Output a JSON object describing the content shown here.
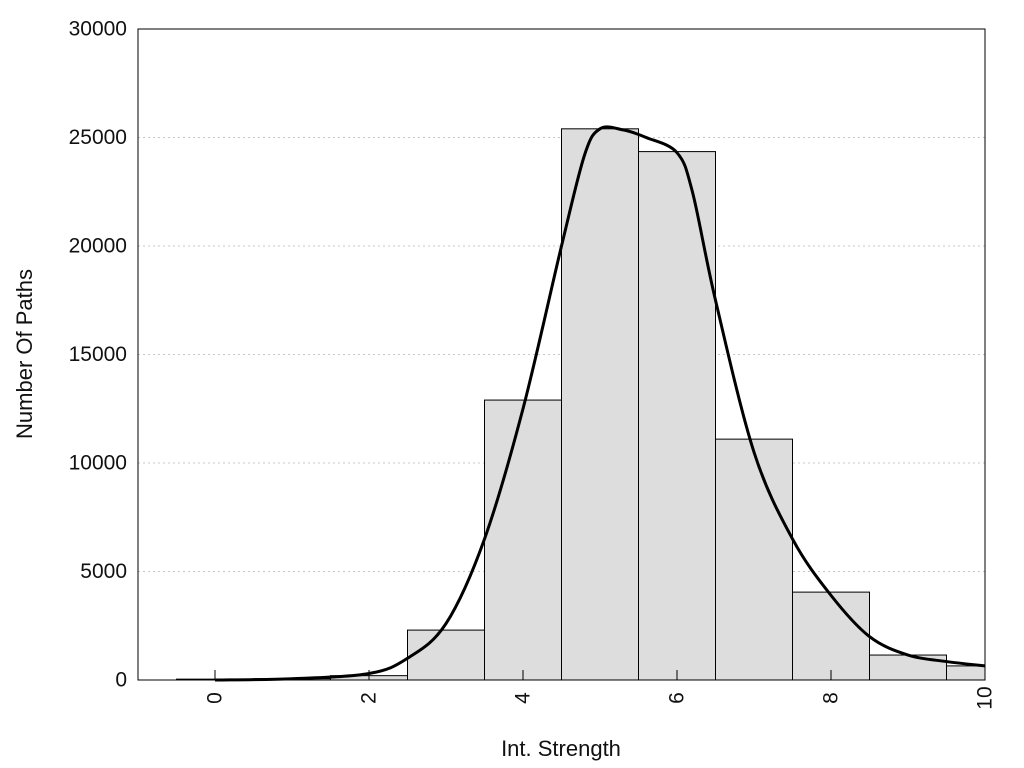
{
  "chart_data": {
    "type": "bar",
    "title": "",
    "xlabel": "Int. Strength",
    "ylabel": "Number Of Paths",
    "xlim": [
      -1,
      10
    ],
    "ylim": [
      0,
      30000
    ],
    "xticks": [
      0,
      2,
      4,
      6,
      8,
      10
    ],
    "yticks": [
      0,
      5000,
      10000,
      15000,
      20000,
      25000,
      30000
    ],
    "grid": "horizontal dotted",
    "bar_color": "#dddddd",
    "bar_edge_color": "#000000",
    "line_color": "#000000",
    "bins": [
      {
        "start": -0.5,
        "end": 0.5,
        "count": 40
      },
      {
        "start": 0.5,
        "end": 1.5,
        "count": 60
      },
      {
        "start": 1.5,
        "end": 2.5,
        "count": 200
      },
      {
        "start": 2.5,
        "end": 3.5,
        "count": 2300
      },
      {
        "start": 3.5,
        "end": 4.5,
        "count": 12900
      },
      {
        "start": 4.5,
        "end": 5.5,
        "count": 25400
      },
      {
        "start": 5.5,
        "end": 6.5,
        "count": 24350
      },
      {
        "start": 6.5,
        "end": 7.5,
        "count": 11100
      },
      {
        "start": 7.5,
        "end": 8.5,
        "count": 4050
      },
      {
        "start": 8.5,
        "end": 9.5,
        "count": 1150
      },
      {
        "start": 9.5,
        "end": 10,
        "count": 650
      }
    ],
    "curve": {
      "x": [
        0,
        1,
        2,
        2.5,
        3,
        3.5,
        4,
        4.5,
        4.8,
        5,
        5.3,
        5.6,
        6,
        6.2,
        6.5,
        7,
        7.5,
        8,
        8.5,
        9,
        9.5,
        10
      ],
      "y": [
        0,
        60,
        300,
        1000,
        2600,
        6500,
        12500,
        20000,
        24200,
        25400,
        25350,
        25000,
        24300,
        22500,
        17500,
        10500,
        6500,
        3900,
        2000,
        1150,
        850,
        650
      ]
    }
  }
}
